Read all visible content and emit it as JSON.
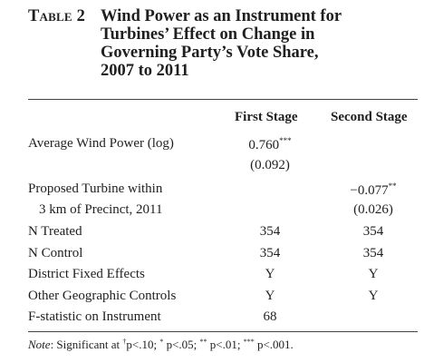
{
  "title": {
    "label": "Table 2",
    "lines": [
      "Wind Power as an Instrument for",
      "Turbines’ Effect on Change in",
      "Governing Party’s Vote Share,",
      "2007 to 2011"
    ]
  },
  "columns": [
    "First Stage",
    "Second Stage"
  ],
  "rows": [
    {
      "label": "Average Wind Power (log)",
      "first": "0.760",
      "first_sig": "***",
      "second": "",
      "second_sig": ""
    },
    {
      "label": "",
      "first": "(0.092)",
      "first_sig": "",
      "second": "",
      "second_sig": ""
    },
    {
      "label": "Proposed Turbine within",
      "first": "",
      "first_sig": "",
      "second": "−0.077",
      "second_sig": "**"
    },
    {
      "label": "3 km of Precinct, 2011",
      "first": "",
      "first_sig": "",
      "second": "(0.026)",
      "second_sig": ""
    },
    {
      "label": "N Treated",
      "first": "354",
      "first_sig": "",
      "second": "354",
      "second_sig": ""
    },
    {
      "label": "N Control",
      "first": "354",
      "first_sig": "",
      "second": "354",
      "second_sig": ""
    },
    {
      "label": "District Fixed Effects",
      "first": "Y",
      "first_sig": "",
      "second": "Y",
      "second_sig": ""
    },
    {
      "label": "Other Geographic Controls",
      "first": "Y",
      "first_sig": "",
      "second": "Y",
      "second_sig": ""
    },
    {
      "label": "F-statistic on Instrument",
      "first": "68",
      "first_sig": "",
      "second": "",
      "second_sig": ""
    }
  ],
  "note": {
    "label": "Note",
    "text_1": ": Significant at ",
    "sym_1": "†",
    "text_2": "p<.10; ",
    "sym_2": "*",
    "text_3": " p<.05; ",
    "sym_3": "**",
    "text_4": " p<.01; ",
    "sym_4": "***",
    "text_5": " p<.001."
  }
}
